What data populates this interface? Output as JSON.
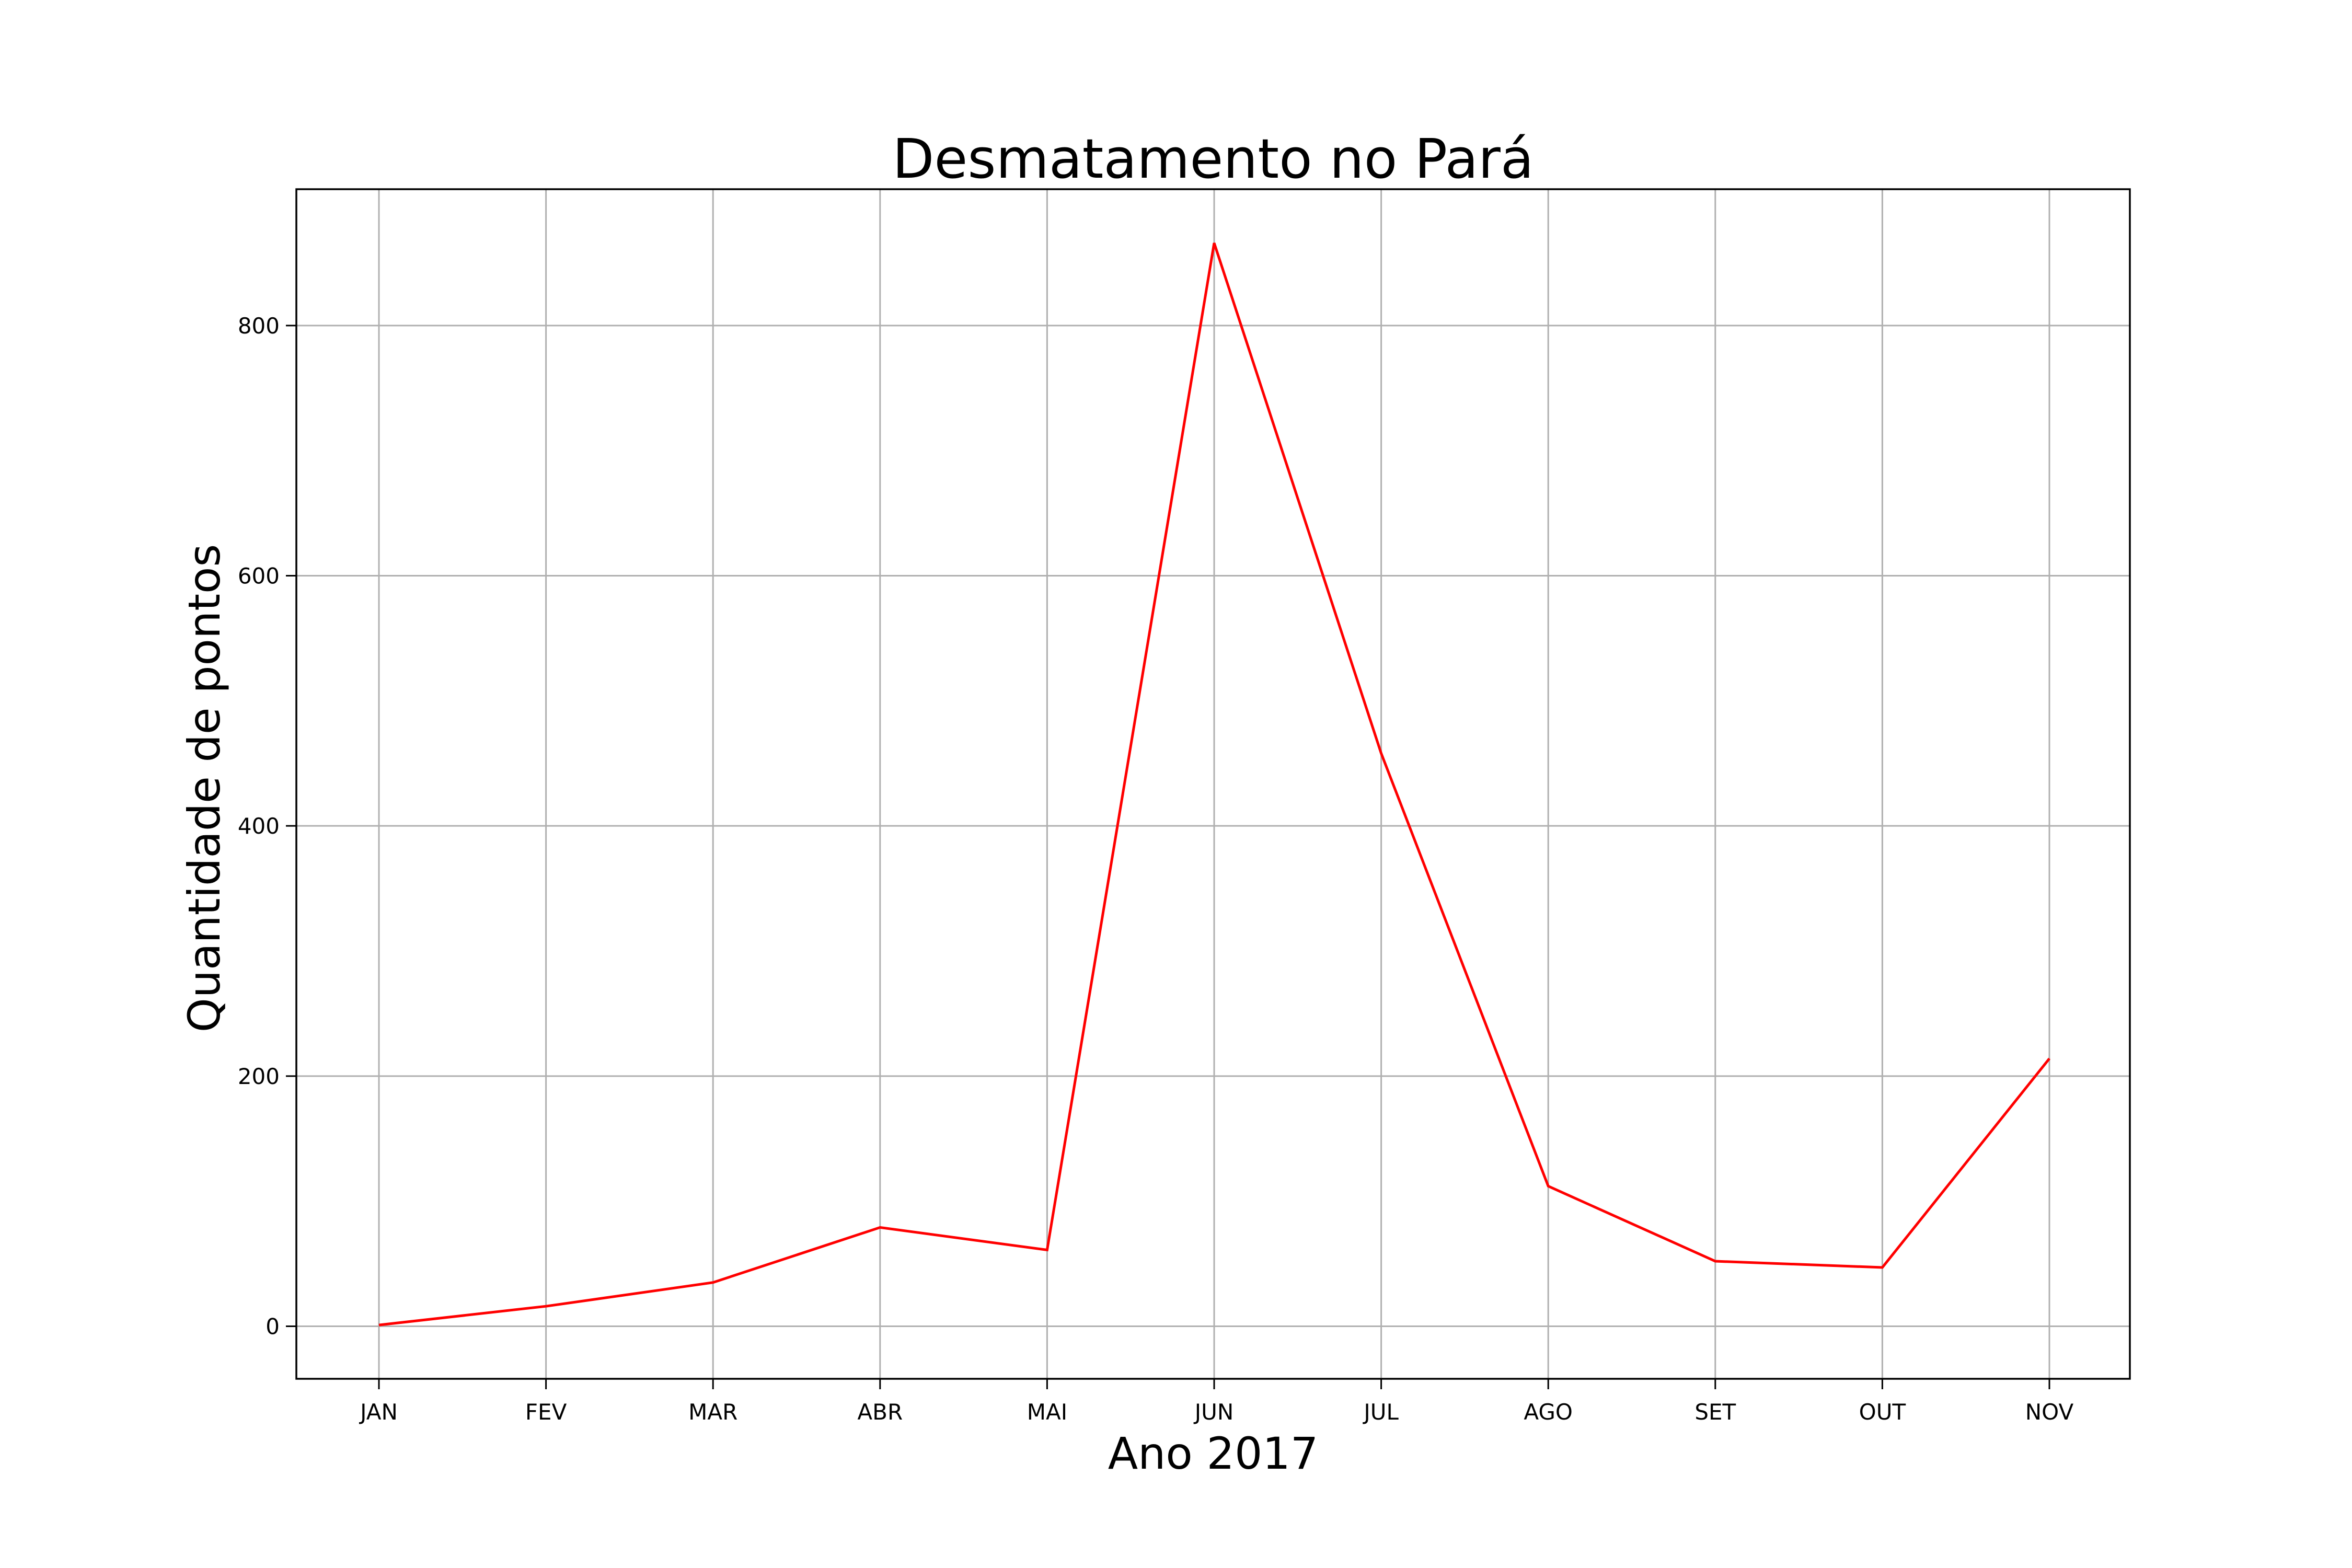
{
  "chart_data": {
    "type": "line",
    "title": "Desmatamento no Pará",
    "xlabel": "Ano 2017",
    "ylabel": "Quantidade de pontos",
    "categories": [
      "JAN",
      "FEV",
      "MAR",
      "ABR",
      "MAI",
      "JUN",
      "JUL",
      "AGO",
      "SET",
      "OUT",
      "NOV"
    ],
    "series": [
      {
        "values": [
          1,
          16,
          35,
          79,
          61,
          866,
          458,
          112,
          52,
          47,
          214
        ],
        "color": "#ff0000"
      }
    ],
    "ylim": [
      -42,
      909
    ],
    "yticks": [
      0,
      200,
      400,
      600,
      800
    ],
    "grid": true
  }
}
